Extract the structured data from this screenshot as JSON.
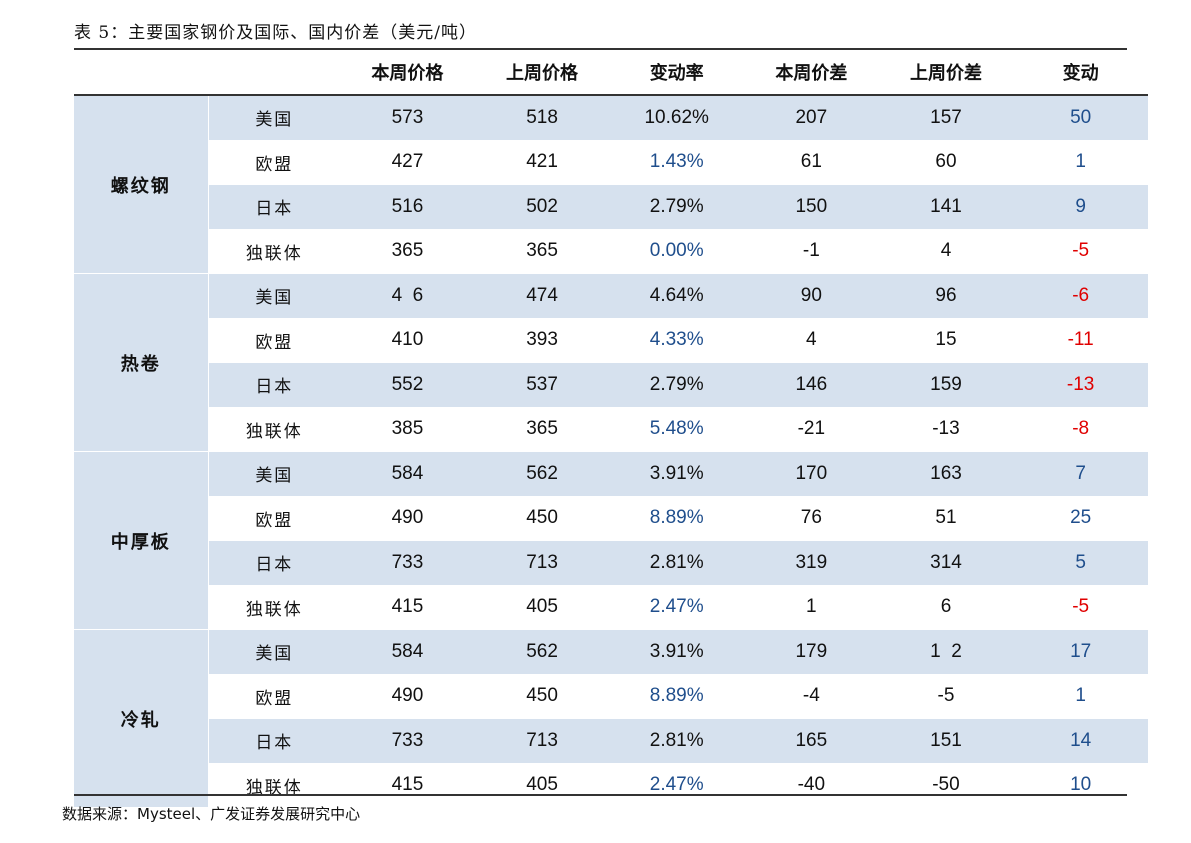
{
  "caption": "表 5：主要国家钢价及国际、国内价差（美元/吨）",
  "headers": [
    "本周价格",
    "上周价格",
    "变动率",
    "本周价差",
    "上周价差",
    "变动"
  ],
  "colors": {
    "positive": "#1f4e8c",
    "negative": "#e00000",
    "shade": "#d6e1ee"
  },
  "groups": [
    {
      "name": "螺纹钢",
      "rows": [
        {
          "region": "美国",
          "cur": "573",
          "prev": "518",
          "rate": "10.62%",
          "rate_style": "neu",
          "spread": "207",
          "prev_spread": "157",
          "change": "50",
          "change_style": "pos"
        },
        {
          "region": "欧盟",
          "cur": "427",
          "prev": "421",
          "rate": "1.43%",
          "rate_style": "pos",
          "spread": "61",
          "prev_spread": "60",
          "change": "1",
          "change_style": "pos"
        },
        {
          "region": "日本",
          "cur": "516",
          "prev": "502",
          "rate": "2.79%",
          "rate_style": "neu",
          "spread": "150",
          "prev_spread": "141",
          "change": "9",
          "change_style": "pos"
        },
        {
          "region": "独联体",
          "cur": "365",
          "prev": "365",
          "rate": "0.00%",
          "rate_style": "pos",
          "spread": "-1",
          "prev_spread": "4",
          "change": "-5",
          "change_style": "neg"
        }
      ]
    },
    {
      "name": "热卷",
      "rows": [
        {
          "region": "美国",
          "cur": "4  6",
          "prev": "474",
          "rate": "4.64%",
          "rate_style": "neu",
          "spread": "90",
          "prev_spread": "96",
          "change": "-6",
          "change_style": "neg"
        },
        {
          "region": "欧盟",
          "cur": "410",
          "prev": "393",
          "rate": "4.33%",
          "rate_style": "pos",
          "spread": "4",
          "prev_spread": "15",
          "change": "-11",
          "change_style": "neg"
        },
        {
          "region": "日本",
          "cur": "552",
          "prev": "537",
          "rate": "2.79%",
          "rate_style": "neu",
          "spread": "146",
          "prev_spread": "159",
          "change": "-13",
          "change_style": "neg"
        },
        {
          "region": "独联体",
          "cur": "385",
          "prev": "365",
          "rate": "5.48%",
          "rate_style": "pos",
          "spread": "-21",
          "prev_spread": "-13",
          "change": "-8",
          "change_style": "neg"
        }
      ]
    },
    {
      "name": "中厚板",
      "rows": [
        {
          "region": "美国",
          "cur": "584",
          "prev": "562",
          "rate": "3.91%",
          "rate_style": "neu",
          "spread": "170",
          "prev_spread": "163",
          "change": "7",
          "change_style": "pos"
        },
        {
          "region": "欧盟",
          "cur": "490",
          "prev": "450",
          "rate": "8.89%",
          "rate_style": "pos",
          "spread": "76",
          "prev_spread": "51",
          "change": "25",
          "change_style": "pos"
        },
        {
          "region": "日本",
          "cur": "733",
          "prev": "713",
          "rate": "2.81%",
          "rate_style": "neu",
          "spread": "319",
          "prev_spread": "314",
          "change": "5",
          "change_style": "pos"
        },
        {
          "region": "独联体",
          "cur": "415",
          "prev": "405",
          "rate": "2.47%",
          "rate_style": "pos",
          "spread": "1",
          "prev_spread": "6",
          "change": "-5",
          "change_style": "neg"
        }
      ]
    },
    {
      "name": "冷轧",
      "rows": [
        {
          "region": "美国",
          "cur": "584",
          "prev": "562",
          "rate": "3.91%",
          "rate_style": "neu",
          "spread": "179",
          "prev_spread": "1  2",
          "change": "17",
          "change_style": "pos"
        },
        {
          "region": "欧盟",
          "cur": "490",
          "prev": "450",
          "rate": "8.89%",
          "rate_style": "pos",
          "spread": "-4",
          "prev_spread": "-5",
          "change": "1",
          "change_style": "pos"
        },
        {
          "region": "日本",
          "cur": "733",
          "prev": "713",
          "rate": "2.81%",
          "rate_style": "neu",
          "spread": "165",
          "prev_spread": "151",
          "change": "14",
          "change_style": "pos"
        },
        {
          "region": "独联体",
          "cur": "415",
          "prev": "405",
          "rate": "2.47%",
          "rate_style": "pos",
          "spread": "-40",
          "prev_spread": "-50",
          "change": "10",
          "change_style": "pos"
        }
      ]
    }
  ],
  "source": "数据来源：Mysteel、广发证券发展研究中心"
}
